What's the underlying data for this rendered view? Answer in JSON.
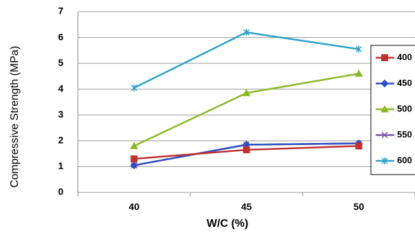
{
  "chart_data": {
    "type": "line",
    "x_label": "W/C  (%)",
    "y_label": "Compressive Strength  (MPa)",
    "categories": [
      "40",
      "45",
      "50"
    ],
    "series": [
      {
        "name": "400",
        "color": "#c0302e",
        "marker": "square",
        "values": [
          1.3,
          1.65,
          1.8
        ]
      },
      {
        "name": "450",
        "color": "#2f4fbf",
        "marker": "diamond",
        "values": [
          1.05,
          1.85,
          1.9
        ]
      },
      {
        "name": "500",
        "color": "#8ab825",
        "marker": "triangle",
        "values": [
          1.8,
          3.85,
          4.6
        ]
      },
      {
        "name": "550",
        "color": "#7d4fa8",
        "marker": "x",
        "values": [
          1.05,
          1.85,
          1.9
        ]
      },
      {
        "name": "600",
        "color": "#2aa0c8",
        "marker": "star",
        "values": [
          4.05,
          6.2,
          5.55
        ]
      }
    ],
    "ylim": [
      0,
      7
    ],
    "yticks": [
      0,
      1,
      2,
      3,
      4,
      5,
      6,
      7
    ],
    "grid": true
  }
}
